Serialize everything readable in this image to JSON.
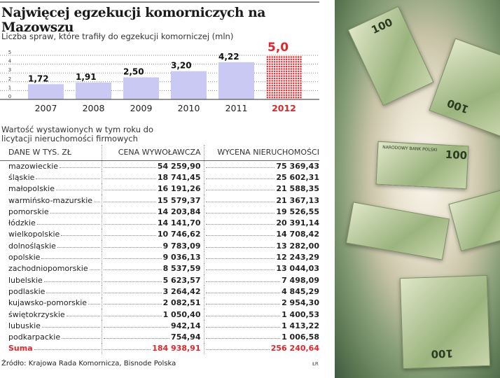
{
  "title": "Najwięcej egzekucji komorniczych na Mazowszu",
  "subtitle": "Liczba spraw, które trafiły do egzekucji komorniczej (mln)",
  "chart_data": {
    "type": "bar",
    "categories": [
      "2007",
      "2008",
      "2009",
      "2010",
      "2011",
      "2012"
    ],
    "values": [
      1.72,
      1.91,
      2.5,
      3.2,
      4.22,
      5.0
    ],
    "labels": [
      "1,72",
      "1,91",
      "2,50",
      "3,20",
      "4,22",
      "5,0"
    ],
    "highlight": "2012",
    "yticks": [
      "0",
      "1",
      "2",
      "3",
      "4",
      "5"
    ],
    "ylim": [
      0,
      5
    ],
    "grid": true,
    "colors": {
      "bar": "#c9c9f3",
      "highlight": "#e0262b"
    }
  },
  "table": {
    "title": "Wartość wystawionych w tym roku do licytacji nieruchomości firmowych",
    "headers": [
      "DANE W TYS. ZŁ",
      "CENA WYWOŁAWCZA",
      "WYCENA NIERUCHOMOŚCI"
    ],
    "rows": [
      [
        "mazowieckie",
        "54 259,90",
        "75 369,43"
      ],
      [
        "śląskie",
        "18 741,45",
        "25 602,31"
      ],
      [
        "małopolskie",
        "16 191,26",
        "21 588,35"
      ],
      [
        "warmińsko-mazurskie",
        "15 579,37",
        "21 367,13"
      ],
      [
        "pomorskie",
        "14 203,84",
        "19 526,55"
      ],
      [
        "łódzkie",
        "14 141,70",
        "20 391,14"
      ],
      [
        "wielkopolskie",
        "10 746,62",
        "14 708,42"
      ],
      [
        "dolnośląskie",
        "9 783,09",
        "13 282,00"
      ],
      [
        "opolskie",
        "9 036,13",
        "12 243,29"
      ],
      [
        "zachodniopomorskie",
        "8 537,59",
        "13 044,03"
      ],
      [
        "lubelskie",
        "5 623,57",
        "7 498,09"
      ],
      [
        "podlaskie",
        "3 264,42",
        "4 845,29"
      ],
      [
        "kujawsko-pomorskie",
        "2 082,51",
        "2 954,30"
      ],
      [
        "świętokrzyskie",
        "1 050,40",
        "1 400,53"
      ],
      [
        "lubuskie",
        "942,14",
        "1 413,22"
      ],
      [
        "podkarpackie",
        "754,94",
        "1 006,58"
      ]
    ],
    "sum": [
      "Suma",
      "184 938,91",
      "256 240,64"
    ]
  },
  "source": "Źródło: Krajowa Rada Komornicza, Bisnode Polska",
  "credit": "ŁR",
  "photo": {
    "banknote_value": "100",
    "bank_text": "NARODOWY BANK POLSKI"
  }
}
